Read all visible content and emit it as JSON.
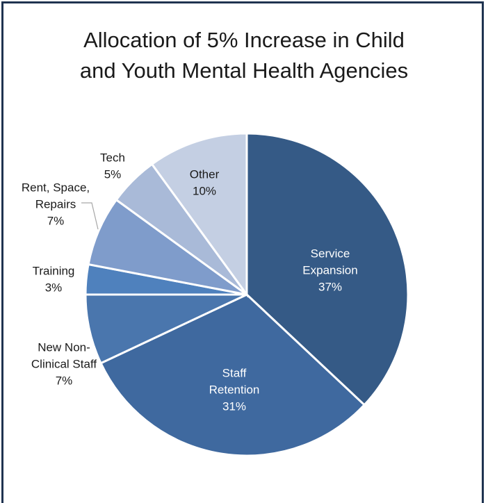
{
  "chart_data": {
    "type": "pie",
    "title_line1": "Allocation of 5% Increase in Child",
    "title_line2": "and Youth Mental Health Agencies",
    "slices": [
      {
        "label": "Service Expansion",
        "value": 37,
        "pct": "37%",
        "color": "#355a86",
        "label_lines": [
          "Service",
          "Expansion"
        ],
        "text_color": "#ffffff"
      },
      {
        "label": "Staff Retention",
        "value": 31,
        "pct": "31%",
        "color": "#3f699f",
        "label_lines": [
          "Staff",
          "Retention"
        ],
        "text_color": "#ffffff"
      },
      {
        "label": "New Non-Clinical Staff",
        "value": 7,
        "pct": "7%",
        "color": "#4a76ad",
        "label_lines": [
          "New Non-",
          "Clinical Staff"
        ],
        "text_color": "#1a1a1a"
      },
      {
        "label": "Training",
        "value": 3,
        "pct": "3%",
        "color": "#4f81bd",
        "label_lines": [
          "Training"
        ],
        "text_color": "#1a1a1a"
      },
      {
        "label": "Rent, Space, Repairs",
        "value": 7,
        "pct": "7%",
        "color": "#7f9ccb",
        "label_lines": [
          "Rent, Space,",
          "Repairs"
        ],
        "text_color": "#1a1a1a"
      },
      {
        "label": "Tech",
        "value": 5,
        "pct": "5%",
        "color": "#a9bad8",
        "label_lines": [
          "Tech"
        ],
        "text_color": "#1a1a1a"
      },
      {
        "label": "Other",
        "value": 10,
        "pct": "10%",
        "color": "#c4cfe3",
        "label_lines": [
          "Other"
        ],
        "text_color": "#1a1a1a"
      }
    ],
    "border_color": "#1f3350"
  }
}
